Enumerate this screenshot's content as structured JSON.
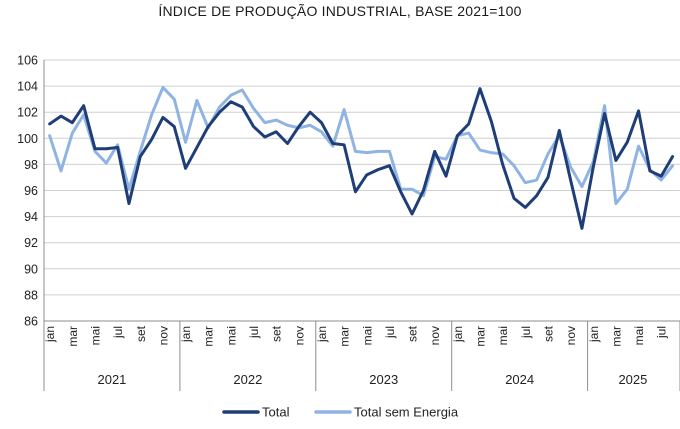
{
  "chart_data": {
    "type": "line",
    "title": "ÍNDICE DE PRODUÇÃO INDUSTRIAL, BASE 2021=100",
    "xlabel": "",
    "ylabel": "",
    "ylim": [
      86,
      106
    ],
    "yticks": [
      86,
      88,
      90,
      92,
      94,
      96,
      98,
      100,
      102,
      104,
      106
    ],
    "grid": "horizontal",
    "legend_position": "bottom",
    "years": [
      {
        "label": "2021",
        "months": 12
      },
      {
        "label": "2022",
        "months": 12
      },
      {
        "label": "2023",
        "months": 12
      },
      {
        "label": "2024",
        "months": 12
      },
      {
        "label": "2025",
        "months": 8
      }
    ],
    "month_tick_labels": [
      "jan",
      "mar",
      "mai",
      "jul",
      "set",
      "nov"
    ],
    "series": [
      {
        "name": "Total",
        "color": "#1f3e78",
        "values": [
          101.1,
          101.7,
          101.2,
          102.5,
          99.2,
          99.2,
          99.3,
          95.0,
          98.6,
          99.9,
          101.6,
          100.9,
          97.7,
          99.3,
          100.9,
          102.0,
          102.8,
          102.4,
          100.9,
          100.1,
          100.5,
          99.6,
          100.9,
          102.0,
          101.2,
          99.6,
          99.5,
          95.9,
          97.2,
          97.6,
          97.9,
          95.9,
          94.2,
          96.0,
          99.0,
          97.1,
          100.2,
          101.1,
          103.8,
          101.3,
          98.0,
          95.4,
          94.7,
          95.6,
          97.0,
          100.6,
          96.8,
          93.1,
          97.8,
          101.9,
          98.3,
          99.7,
          102.1,
          97.5,
          97.1,
          98.6
        ]
      },
      {
        "name": "Total sem Energia",
        "color": "#8fb4e3",
        "values": [
          100.2,
          97.5,
          100.4,
          101.8,
          99.0,
          98.1,
          99.5,
          96.1,
          99.0,
          101.8,
          103.9,
          103.0,
          99.7,
          102.9,
          100.8,
          102.4,
          103.3,
          103.7,
          102.3,
          101.2,
          101.4,
          101.0,
          100.8,
          101.0,
          100.5,
          99.4,
          102.2,
          99.0,
          98.9,
          99.0,
          99.0,
          96.1,
          96.1,
          95.6,
          98.6,
          98.4,
          100.2,
          100.4,
          99.1,
          98.9,
          98.8,
          97.9,
          96.6,
          96.8,
          98.8,
          100.2,
          97.8,
          96.3,
          98.2,
          102.5,
          95.0,
          96.1,
          99.4,
          97.6,
          96.8,
          97.9
        ]
      }
    ]
  }
}
